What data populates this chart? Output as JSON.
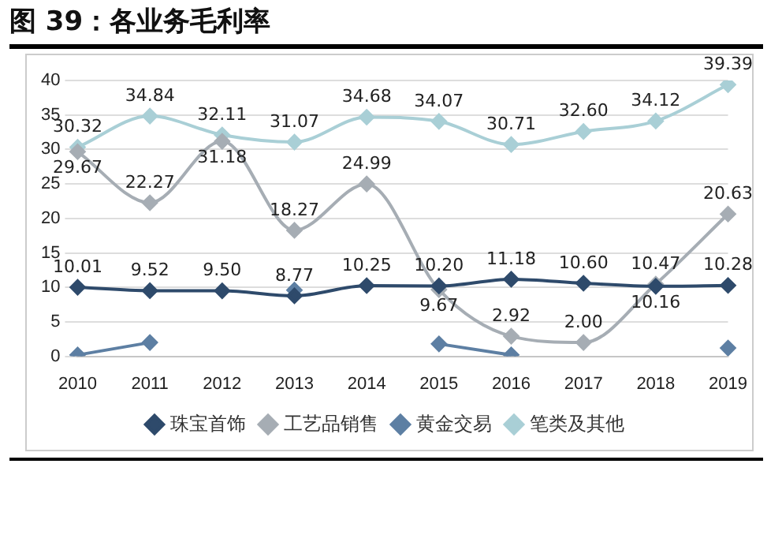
{
  "chart_data": {
    "type": "line",
    "title": "图 39：各业务毛利率",
    "categories": [
      "2010",
      "2011",
      "2012",
      "2013",
      "2014",
      "2015",
      "2016",
      "2017",
      "2018",
      "2019"
    ],
    "series": [
      {
        "name": "珠宝首饰",
        "color": "#2e4a6b",
        "values": [
          10.01,
          9.52,
          9.5,
          8.77,
          10.25,
          10.2,
          11.18,
          10.6,
          10.16,
          10.28
        ],
        "value_labels": [
          "10.01",
          "9.52",
          "9.50",
          "8.77",
          "10.25",
          "10.20",
          "11.18",
          "10.60",
          "10.16",
          "10.28"
        ]
      },
      {
        "name": "工艺品销售",
        "color": "#a6adb4",
        "values": [
          29.67,
          22.27,
          31.18,
          18.27,
          24.99,
          9.67,
          2.92,
          2.0,
          10.47,
          20.63
        ],
        "value_labels": [
          "29.67",
          "22.27",
          "31.18",
          "18.27",
          "24.99",
          "9.67",
          "2.92",
          "2.00",
          "10.47",
          "20.63"
        ]
      },
      {
        "name": "黄金交易",
        "color": "#5d7fa3",
        "values": [
          0.2,
          2.0,
          null,
          9.6,
          null,
          1.8,
          0.2,
          null,
          null,
          1.2
        ]
      },
      {
        "name": "笔类及其他",
        "color": "#a9cfd6",
        "values": [
          30.32,
          34.84,
          32.11,
          31.07,
          34.68,
          34.07,
          30.71,
          32.6,
          34.12,
          39.39
        ],
        "value_labels": [
          "30.32",
          "34.84",
          "32.11",
          "31.07",
          "34.68",
          "34.07",
          "30.71",
          "32.60",
          "34.12",
          "39.39"
        ]
      }
    ],
    "ylim": [
      0,
      40
    ],
    "yticks": [
      0,
      5,
      10,
      15,
      20,
      25,
      30,
      35,
      40
    ],
    "grid": "y",
    "legend": "bottom",
    "marker": "diamond",
    "line_style": "solid"
  }
}
